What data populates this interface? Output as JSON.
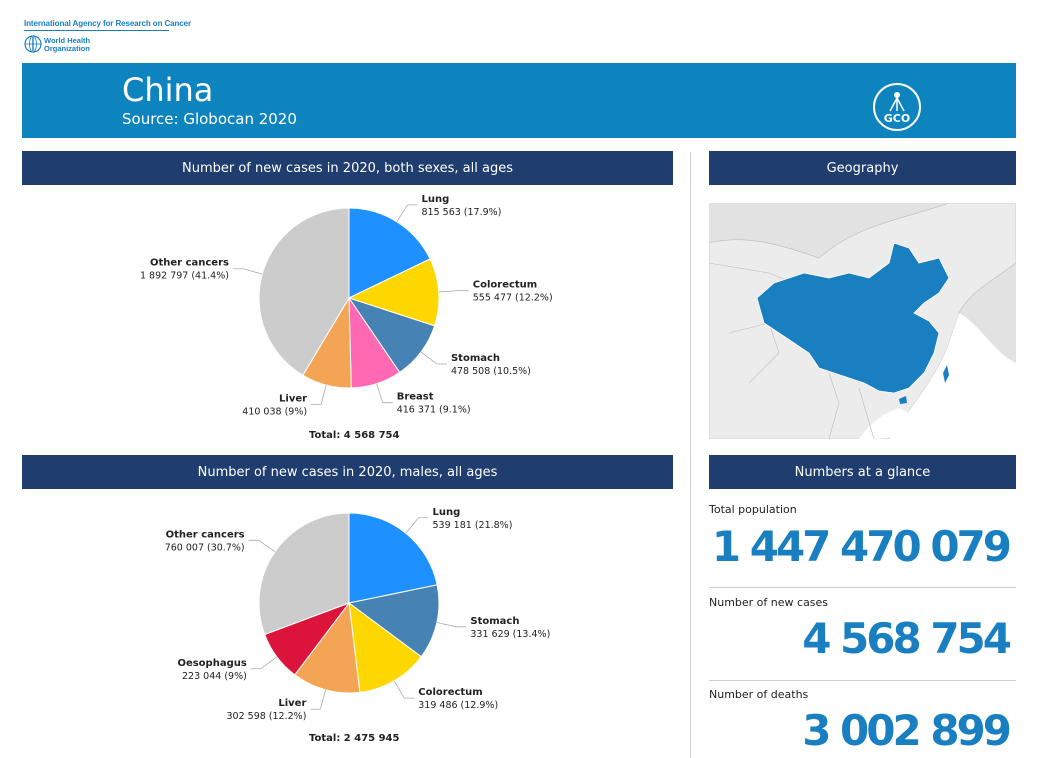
{
  "header": {
    "org_line": "International Agency for Research on Cancer",
    "who_name": "World Health Organization",
    "title": "China",
    "source": "Source: Globocan 2020",
    "logo_text": "GCO"
  },
  "sections": {
    "chart1_title": "Number of new cases in 2020, both sexes, all ages",
    "chart2_title": "Number of new cases in 2020, males, all ages",
    "geography_title": "Geography",
    "glance_title": "Numbers at a glance"
  },
  "glance": {
    "population_label": "Total population",
    "population_value": "1 447 470 079",
    "new_cases_label": "Number of new cases",
    "new_cases_value": "4 568 754",
    "deaths_label": "Number of deaths",
    "deaths_value": "3 002 899"
  },
  "chart_data": [
    {
      "type": "pie",
      "title": "Number of new cases in 2020, both sexes, all ages",
      "total_label": "Total: 4 568 754",
      "slices": [
        {
          "name": "Lung",
          "value": 815563,
          "label": "815 563 (17.9%)",
          "color": "#1e90ff"
        },
        {
          "name": "Colorectum",
          "value": 555477,
          "label": "555 477 (12.2%)",
          "color": "#ffd700"
        },
        {
          "name": "Stomach",
          "value": 478508,
          "label": "478 508 (10.5%)",
          "color": "#4682b4"
        },
        {
          "name": "Breast",
          "value": 416371,
          "label": "416 371 (9.1%)",
          "color": "#ff69b4"
        },
        {
          "name": "Liver",
          "value": 410038,
          "label": "410 038 (9%)",
          "color": "#f4a455"
        },
        {
          "name": "Other cancers",
          "value": 1892797,
          "label": "1 892 797 (41.4%)",
          "color": "#cccccc"
        }
      ]
    },
    {
      "type": "pie",
      "title": "Number of new cases in 2020, males, all ages",
      "total_label": "Total: 2 475 945",
      "slices": [
        {
          "name": "Lung",
          "value": 539181,
          "label": "539 181 (21.8%)",
          "color": "#1e90ff"
        },
        {
          "name": "Stomach",
          "value": 331629,
          "label": "331 629 (13.4%)",
          "color": "#4682b4"
        },
        {
          "name": "Colorectum",
          "value": 319486,
          "label": "319 486 (12.9%)",
          "color": "#ffd700"
        },
        {
          "name": "Liver",
          "value": 302598,
          "label": "302 598 (12.2%)",
          "color": "#f4a455"
        },
        {
          "name": "Oesophagus",
          "value": 223044,
          "label": "223 044 (9%)",
          "color": "#dc143c"
        },
        {
          "name": "Other cancers",
          "value": 760007,
          "label": "760 007 (30.7%)",
          "color": "#cccccc"
        }
      ]
    }
  ]
}
